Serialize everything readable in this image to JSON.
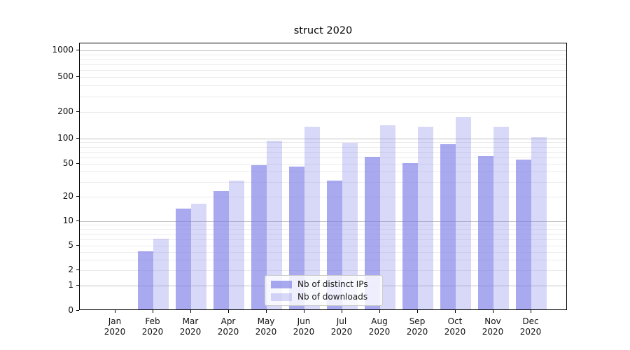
{
  "title": "struct 2020",
  "colors": {
    "ips": "rgba(120,120,230,0.64)",
    "downloads": "rgba(120,120,230,0.29)",
    "grid_major": "#c4c4c4",
    "grid_minor": "#ebebeb",
    "axis": "#000000"
  },
  "legend": {
    "items": [
      {
        "label": "Nb of distinct IPs",
        "series_key": "ips"
      },
      {
        "label": "Nb of downloads",
        "series_key": "downloads"
      }
    ]
  },
  "chart_data": {
    "type": "bar",
    "title": "struct 2020",
    "categories": [
      "Jan 2020",
      "Feb 2020",
      "Mar 2020",
      "Apr 2020",
      "May 2020",
      "Jun 2020",
      "Jul 2020",
      "Aug 2020",
      "Sep 2020",
      "Oct 2020",
      "Nov 2020",
      "Dec 2020"
    ],
    "x_tick_line1": [
      "Jan",
      "Feb",
      "Mar",
      "Apr",
      "May",
      "Jun",
      "Jul",
      "Aug",
      "Sep",
      "Oct",
      "Nov",
      "Dec"
    ],
    "x_tick_line2": [
      "2020",
      "2020",
      "2020",
      "2020",
      "2020",
      "2020",
      "2020",
      "2020",
      "2020",
      "2020",
      "2020",
      "2020"
    ],
    "series": [
      {
        "name": "Nb of distinct IPs",
        "values": [
          0,
          4,
          14,
          23,
          47,
          45,
          31,
          60,
          50,
          84,
          61,
          55
        ]
      },
      {
        "name": "Nb of downloads",
        "values": [
          0,
          6,
          16,
          31,
          93,
          134,
          88,
          139,
          134,
          173,
          134,
          102
        ]
      }
    ],
    "yscale": "symlog",
    "y_major_ticks": [
      0,
      1,
      2,
      5,
      10,
      20,
      50,
      100,
      200,
      500,
      1000
    ],
    "y_grid_major": [
      1,
      10,
      100,
      1000
    ],
    "y_grid_minor": [
      2,
      3,
      4,
      5,
      6,
      7,
      8,
      9,
      20,
      30,
      40,
      50,
      60,
      70,
      80,
      90,
      200,
      300,
      400,
      500,
      600,
      700,
      800,
      900
    ],
    "ylim": [
      0,
      1400
    ],
    "grid": true,
    "legend_position": "lower center"
  }
}
